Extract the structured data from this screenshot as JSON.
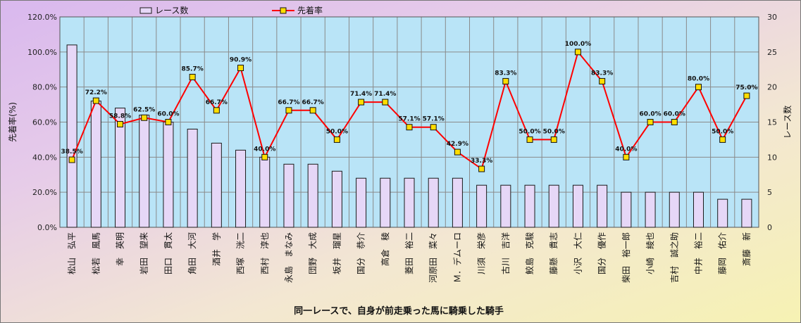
{
  "chart_data": {
    "type": "bar",
    "xlabel": "同一レースで、自身が前走乗った馬に騎乗した騎手",
    "y1label": "先着率(%)",
    "y2label": "レース数",
    "y1lim": [
      0,
      120
    ],
    "y2lim": [
      0,
      30
    ],
    "y1ticks": [
      "0.0%",
      "20.0%",
      "40.0%",
      "60.0%",
      "80.0%",
      "100.0%",
      "120.0%"
    ],
    "y2ticks": [
      "0",
      "5",
      "10",
      "15",
      "20",
      "25",
      "30"
    ],
    "legend": [
      {
        "name": "レース数",
        "kind": "bar"
      },
      {
        "name": "先着率",
        "kind": "line"
      }
    ],
    "colors": {
      "bar_fill": "#e6d7f7",
      "bar_stroke": "#1a1a1a",
      "line": "#ff0000",
      "marker_fill": "#ffdd00",
      "marker_stroke": "#111111",
      "plot_bg": "#b9e4f7",
      "grid": "#8a8a8a"
    },
    "grid": true,
    "legend_placement": "top",
    "categories": [
      "松山　弘平",
      "松若　風馬",
      "幸　英明",
      "岩田　望来",
      "田口　貫太",
      "角田　大河",
      "酒井　学",
      "西塚　洸二",
      "西村　淳也",
      "永島　まなみ",
      "団野　大成",
      "坂井　瑠星",
      "国分　恭介",
      "高倉　稜",
      "菱田　裕二",
      "河原田　菜々",
      "Ｍ．デムーロ",
      "川須　栄彦",
      "古川　吉洋",
      "鮫島　克駿",
      "藤懸　貴志",
      "小沢　大仁",
      "国分　優作",
      "柴田　裕一郎",
      "小崎　綾也",
      "吉村　誠之助",
      "中井　裕二",
      "藤岡　佑介",
      "斎藤　新"
    ],
    "series": [
      {
        "name": "レース数",
        "axis": "right",
        "values": [
          26,
          18,
          17,
          16,
          15,
          14,
          12,
          11,
          10,
          9,
          9,
          8,
          7,
          7,
          7,
          7,
          7,
          6,
          6,
          6,
          6,
          6,
          6,
          5,
          5,
          5,
          5,
          4,
          4
        ]
      },
      {
        "name": "先着率",
        "axis": "left",
        "values": [
          38.5,
          72.2,
          58.8,
          62.5,
          60.0,
          85.7,
          66.7,
          90.9,
          40.0,
          66.7,
          66.7,
          50.0,
          71.4,
          71.4,
          57.1,
          57.1,
          42.9,
          33.3,
          83.3,
          50.0,
          50.0,
          100.0,
          83.3,
          40.0,
          60.0,
          60.0,
          80.0,
          50.0,
          75.0
        ],
        "labels": [
          "38.5%",
          "72.2%",
          "58.8%",
          "62.5%",
          "60.0%",
          "85.7%",
          "66.7%",
          "90.9%",
          "40.0%",
          "66.7%",
          "66.7%",
          "50.0%",
          "71.4%",
          "71.4%",
          "57.1%",
          "57.1%",
          "42.9%",
          "33.3%",
          "83.3%",
          "50.0%",
          "50.0%",
          "100.0%",
          "83.3%",
          "40.0%",
          "60.0%",
          "60.0%",
          "80.0%",
          "50.0%",
          "75.0%"
        ]
      }
    ]
  }
}
